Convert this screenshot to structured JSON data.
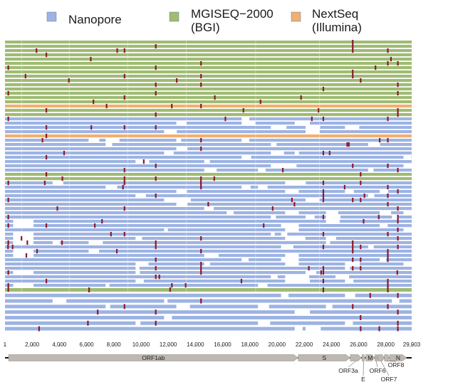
{
  "chart_data": {
    "type": "genome-coverage-track",
    "legend": [
      {
        "name": "Nanopore",
        "lines": [
          "Nanopore"
        ],
        "color": "#9db3e3"
      },
      {
        "name": "MGISEQ-2000 (BGI)",
        "lines": [
          "MGISEQ−2000",
          "(BGI)"
        ],
        "color": "#9fbb74"
      },
      {
        "name": "NextSeq (Illumina)",
        "lines": [
          "NextSeq",
          "(Illumina)"
        ],
        "color": "#f0b070"
      }
    ],
    "genome_length": 29903,
    "x_ticks": [
      1,
      2000,
      4000,
      6000,
      8000,
      10000,
      12000,
      14000,
      16000,
      18000,
      20000,
      22000,
      24000,
      26000,
      28000,
      29903
    ],
    "x_tick_labels": [
      "1",
      "2,000",
      "4,000",
      "6,000",
      "8,000",
      "10,000",
      "12,000",
      "14,000",
      "16,000",
      "18,000",
      "20,000",
      "22,000",
      "24,000",
      "26,000",
      "28,000",
      "29,903"
    ],
    "tracks_top": [
      "G",
      "G",
      "G",
      "G",
      "G",
      "G",
      "G",
      "G",
      "G",
      "G",
      "G",
      "G",
      "G",
      "G",
      "G",
      "O",
      "G",
      "G",
      "N",
      "N",
      "N",
      "N",
      "O",
      "N",
      "N",
      "N",
      "N",
      "N",
      "N",
      "N",
      "N",
      "G",
      "G",
      "N",
      "N",
      "N",
      "N",
      "N",
      "N",
      "N",
      "N",
      "N",
      "N",
      "N",
      "N",
      "N",
      "N",
      "N",
      "N",
      "N",
      "N",
      "N",
      "N",
      "N",
      "N",
      "N",
      "N",
      "N",
      "N"
    ],
    "tracks_bottom": [
      "G",
      "N",
      "N",
      "N",
      "N",
      "N",
      "N",
      "N"
    ],
    "variant_color": "#8b1a2b",
    "common_variants": [
      240,
      3037,
      8782,
      11083,
      14408,
      23403,
      25563,
      26144,
      28144,
      28881
    ],
    "genes": [
      {
        "name": "ORF1ab",
        "start": 266,
        "end": 21555
      },
      {
        "name": "S",
        "start": 21563,
        "end": 25384
      },
      {
        "name": "ORF3a",
        "start": 25393,
        "end": 26220
      },
      {
        "name": "E",
        "start": 26245,
        "end": 26472
      },
      {
        "name": "M",
        "start": 26523,
        "end": 27191
      },
      {
        "name": "ORF6",
        "start": 27202,
        "end": 27387
      },
      {
        "name": "ORF7",
        "start": 27394,
        "end": 27887
      },
      {
        "name": "ORF8",
        "start": 27894,
        "end": 28259
      },
      {
        "name": "N",
        "start": 28274,
        "end": 29533
      }
    ]
  }
}
